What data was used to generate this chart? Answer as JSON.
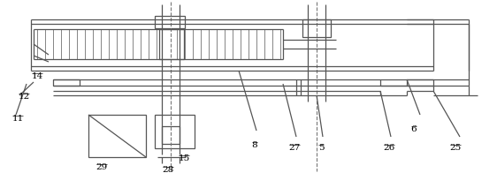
{
  "fig_width": 5.62,
  "fig_height": 1.96,
  "dpi": 100,
  "line_color": "#555555",
  "bg_color": "#ffffff"
}
